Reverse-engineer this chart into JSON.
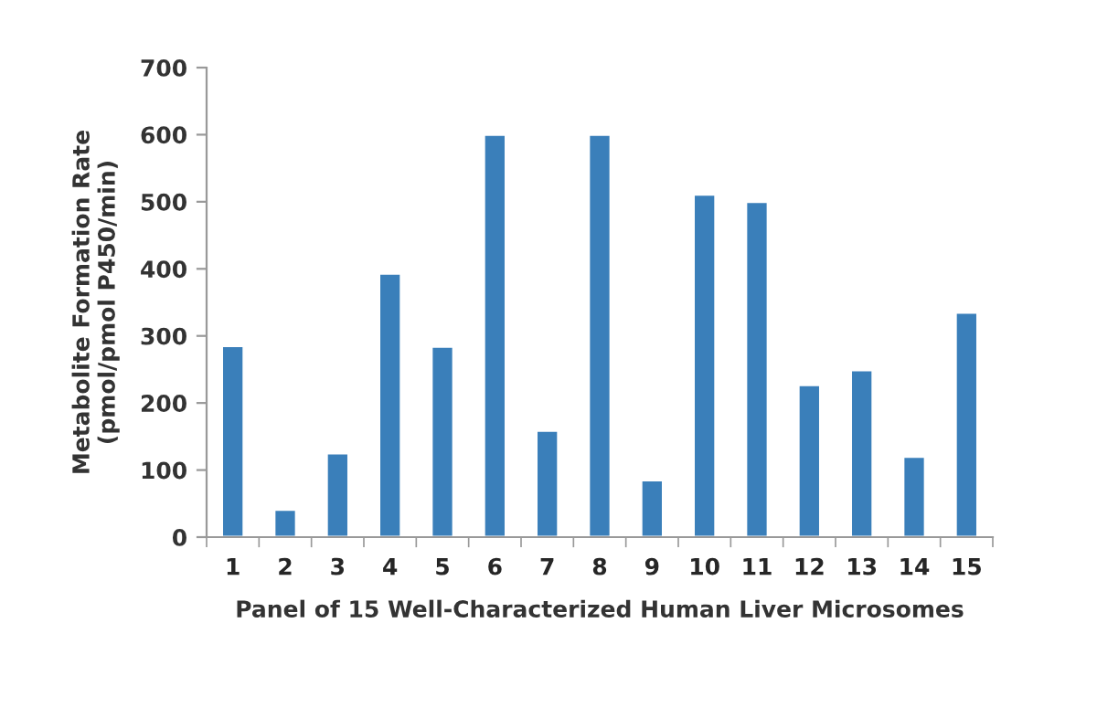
{
  "chart_data": {
    "type": "bar",
    "xlabel": "Panel of 15 Well-Characterized Human Liver Microsomes",
    "ylabel": "Metabolite Formation Rate\n(pmol/pmol P450/min)",
    "categories": [
      "1",
      "2",
      "3",
      "4",
      "5",
      "6",
      "7",
      "8",
      "9",
      "10",
      "11",
      "12",
      "13",
      "14",
      "15"
    ],
    "values": [
      285,
      41,
      125,
      393,
      284,
      600,
      159,
      600,
      85,
      511,
      500,
      227,
      249,
      120,
      335
    ],
    "color": "#3a7fba",
    "ylim": [
      0,
      700
    ],
    "yticks": [
      0,
      100,
      200,
      300,
      400,
      500,
      600,
      700
    ],
    "grid": false,
    "legend": false
  }
}
